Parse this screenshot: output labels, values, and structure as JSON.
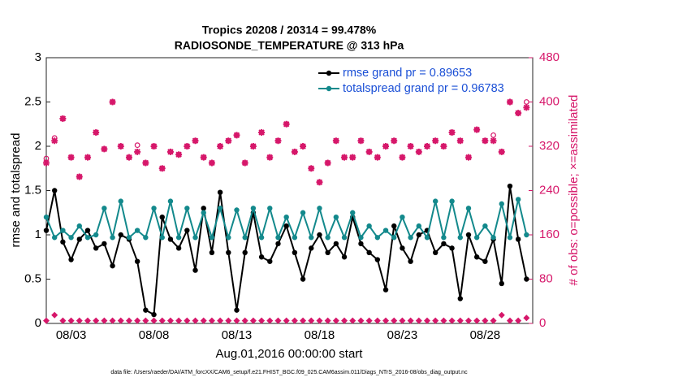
{
  "chart_data": {
    "type": "line",
    "title": "Tropics 20208 / 20314 = 99.478%",
    "subtitle": "RADIOSONDE_TEMPERATURE @ 313 hPa",
    "x_label": "Aug.01,2016 00:00:00 start",
    "y_label": "rmse and totalspread",
    "y2_label": "# of obs: o=possible; ×=assimilated",
    "footnote": "data file: /Users/raeder/DAI/ATM_forcXX/CAM6_setup/f.e21.FHIST_BGC.f09_025.CAM6assim.011/Diags_NTrS_2016-08/obs_diag_output.nc",
    "legend": "northeast",
    "x": [
      0.5,
      1,
      1.5,
      2,
      2.5,
      3,
      3.5,
      4,
      4.5,
      5,
      5.5,
      6,
      6.5,
      7,
      7.5,
      8,
      8.5,
      9,
      9.5,
      10,
      10.5,
      11,
      11.5,
      12,
      12.5,
      13,
      13.5,
      14,
      14.5,
      15,
      15.5,
      16,
      16.5,
      17,
      17.5,
      18,
      18.5,
      19,
      19.5,
      20,
      20.5,
      21,
      21.5,
      22,
      22.5,
      23,
      23.5,
      24,
      24.5,
      25,
      25.5,
      26,
      26.5,
      27,
      27.5,
      28,
      28.5,
      29,
      29.5
    ],
    "xlim": [
      0.5,
      29.875
    ],
    "xticks": [
      {
        "value": 2,
        "label": "08/03"
      },
      {
        "value": 7,
        "label": "08/08"
      },
      {
        "value": 12,
        "label": "08/13"
      },
      {
        "value": 17,
        "label": "08/18"
      },
      {
        "value": 22,
        "label": "08/23"
      },
      {
        "value": 27,
        "label": "08/28"
      }
    ],
    "ylim": [
      0,
      3
    ],
    "yticks": [
      0,
      0.5,
      1,
      1.5,
      2,
      2.5,
      3
    ],
    "y2lim": [
      0,
      480
    ],
    "y2ticks": [
      0,
      80,
      160,
      240,
      320,
      400,
      480
    ],
    "series": [
      {
        "name": "rmse grand pr = 0.89653",
        "color": "#000000",
        "marker": "dot",
        "values": [
          1.05,
          1.5,
          0.92,
          0.72,
          0.95,
          1.05,
          0.85,
          0.9,
          0.65,
          1.0,
          0.95,
          0.7,
          0.15,
          0.1,
          1.2,
          0.95,
          0.85,
          1.05,
          0.6,
          1.3,
          0.8,
          1.48,
          0.8,
          0.15,
          0.8,
          1.25,
          0.75,
          0.7,
          0.9,
          1.1,
          0.8,
          0.5,
          0.85,
          1.0,
          0.8,
          0.9,
          0.75,
          1.2,
          0.9,
          0.8,
          0.72,
          0.38,
          1.1,
          0.85,
          0.7,
          1.0,
          1.05,
          0.8,
          0.9,
          0.85,
          0.28,
          1.0,
          0.75,
          0.7,
          0.95,
          0.45,
          1.55,
          0.95,
          0.5
        ]
      },
      {
        "name": "totalspread grand pr = 0.96783",
        "color": "#13898c",
        "marker": "dot",
        "values": [
          1.2,
          0.97,
          1.05,
          0.97,
          1.1,
          0.97,
          1.0,
          1.3,
          0.97,
          1.38,
          0.97,
          1.05,
          0.97,
          1.3,
          0.97,
          1.38,
          0.97,
          1.3,
          0.97,
          1.25,
          0.97,
          1.3,
          0.97,
          1.28,
          0.97,
          1.3,
          0.97,
          1.3,
          0.97,
          1.2,
          0.97,
          1.25,
          0.97,
          1.3,
          0.97,
          1.2,
          0.97,
          1.25,
          0.97,
          1.1,
          0.97,
          1.05,
          0.97,
          1.2,
          0.97,
          1.1,
          0.97,
          1.38,
          0.97,
          1.38,
          0.97,
          1.3,
          0.97,
          1.1,
          0.97,
          1.35,
          0.97,
          1.4,
          1.0
        ]
      },
      {
        "color": "#d6176a",
        "marker": "o",
        "axis": "y2",
        "values": [
          298,
          335,
          370,
          300,
          265,
          300,
          345,
          315,
          400,
          320,
          300,
          322,
          290,
          320,
          280,
          310,
          305,
          320,
          330,
          300,
          290,
          320,
          330,
          340,
          290,
          320,
          345,
          300,
          330,
          360,
          310,
          320,
          280,
          255,
          290,
          330,
          300,
          300,
          330,
          310,
          300,
          320,
          330,
          300,
          320,
          310,
          320,
          330,
          320,
          345,
          330,
          300,
          350,
          330,
          340,
          310,
          400,
          380,
          400
        ]
      },
      {
        "color": "#d6176a",
        "marker": "star",
        "axis": "y2",
        "values": [
          290,
          330,
          370,
          300,
          265,
          300,
          345,
          315,
          400,
          320,
          300,
          310,
          290,
          320,
          280,
          310,
          305,
          320,
          330,
          300,
          290,
          320,
          330,
          340,
          290,
          320,
          345,
          300,
          330,
          360,
          310,
          320,
          280,
          255,
          290,
          330,
          300,
          300,
          330,
          310,
          300,
          320,
          330,
          300,
          320,
          310,
          320,
          330,
          320,
          345,
          330,
          300,
          350,
          330,
          330,
          310,
          400,
          380,
          390
        ]
      },
      {
        "color": "#d6176a",
        "marker": "diamond",
        "axis": "y2",
        "values": [
          5,
          15,
          5,
          5,
          5,
          5,
          5,
          5,
          5,
          5,
          5,
          5,
          5,
          5,
          5,
          5,
          5,
          5,
          5,
          5,
          5,
          5,
          5,
          5,
          5,
          5,
          5,
          5,
          5,
          5,
          5,
          5,
          5,
          5,
          5,
          5,
          5,
          5,
          5,
          5,
          5,
          5,
          5,
          5,
          5,
          5,
          5,
          5,
          5,
          5,
          5,
          5,
          5,
          5,
          5,
          15,
          5,
          5,
          10
        ]
      }
    ]
  }
}
